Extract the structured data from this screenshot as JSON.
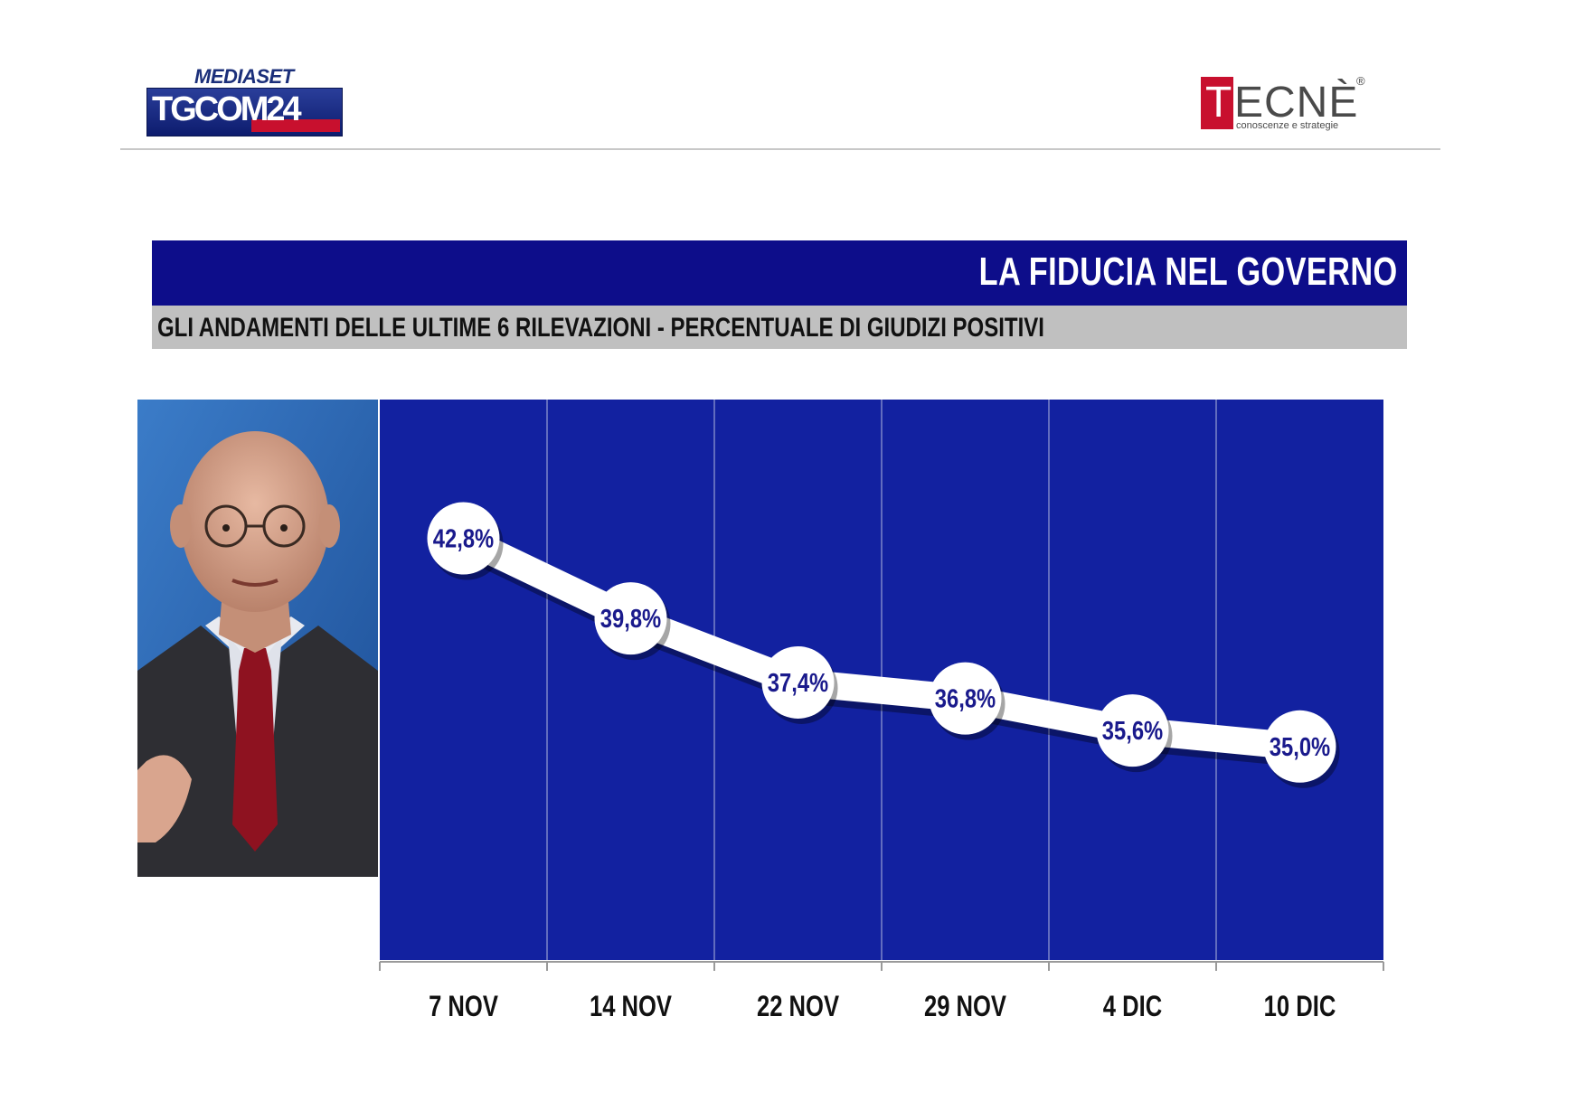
{
  "header": {
    "left_logo": {
      "brand_top": "MEDIASET",
      "brand_main": "TGCOM24"
    },
    "right_logo": {
      "brand": "TECNÈ",
      "registered": "®",
      "tagline": "conoscenze e strategie"
    }
  },
  "title": "LA FIDUCIA NEL GOVERNO",
  "subtitle": "GLI ANDAMENTI DELLE ULTIME 6 RILEVAZIONI - PERCENTUALE DI GIUDIZI POSITIVI",
  "colors": {
    "title_bar": "#0d0d8a",
    "subtitle_bar": "#c0c0c0",
    "plot_background": "#1221a0",
    "line": "#ffffff",
    "value_text": "#1a1a8c",
    "brand_red": "#c8102e"
  },
  "portrait": {
    "icon": "person-photo"
  },
  "chart_data": {
    "type": "line",
    "categories": [
      "7 NOV",
      "14 NOV",
      "22 NOV",
      "29 NOV",
      "4 DIC",
      "10 DIC"
    ],
    "values": [
      42.8,
      39.8,
      37.4,
      36.8,
      35.6,
      35.0
    ],
    "data_labels": [
      "42,8%",
      "39,8%",
      "37,4%",
      "36,8%",
      "35,6%",
      "35,0%"
    ],
    "ylim": [
      27,
      48
    ],
    "grid": "vertical",
    "legend": "none",
    "xlabel": "",
    "ylabel": ""
  }
}
